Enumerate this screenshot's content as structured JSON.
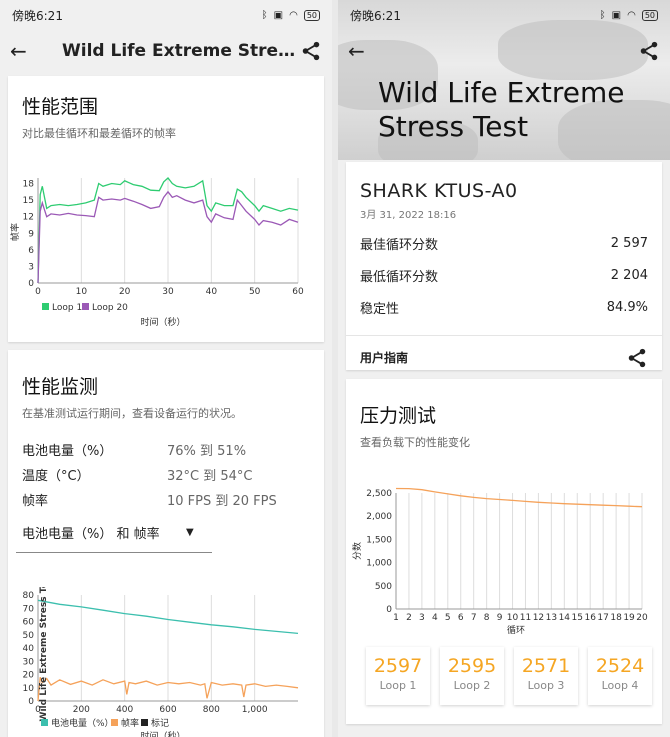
{
  "left": {
    "status": {
      "time": "傍晚6:21",
      "battery": "50"
    },
    "appbar": {
      "title": "Wild Life Extreme Stress Test"
    },
    "range_card": {
      "title": "性能范围",
      "subtitle": "对比最佳循环和最差循环的帧率",
      "ylabel": "帧率",
      "xlabel": "时间（秒）"
    },
    "monitor_card": {
      "title": "性能监测",
      "subtitle": "在基准测试运行期间，查看设备运行的状况。",
      "rows": [
        {
          "key": "电池电量（%）",
          "value": "76% 到 51%"
        },
        {
          "key": "温度（°C）",
          "value": "32°C 到 54°C"
        },
        {
          "key": "帧率",
          "value": "10 FPS 到 20 FPS"
        }
      ],
      "dropdown": "电池电量（%） 和 帧率",
      "overlay_label": "Wild Life Extreme Stress Test",
      "xlabel": "时间（秒）"
    }
  },
  "right": {
    "status": {
      "time": "傍晚6:21",
      "battery": "50"
    },
    "hero_title_line1": "Wild Life Extreme",
    "hero_title_line2": "Stress Test",
    "result_card": {
      "device": "SHARK KTUS-A0",
      "date": "3月 31, 2022 18:16",
      "rows": [
        {
          "key": "最佳循环分数",
          "value": "2 597"
        },
        {
          "key": "最低循环分数",
          "value": "2 204"
        },
        {
          "key": "稳定性",
          "value": "84.9%"
        }
      ],
      "guide": "用户指南"
    },
    "stress_card": {
      "title": "压力测试",
      "subtitle": "查看负载下的性能变化",
      "ylabel": "分数",
      "xlabel": "循环",
      "loops": [
        {
          "score": "2597",
          "label": "Loop 1"
        },
        {
          "score": "2595",
          "label": "Loop 2"
        },
        {
          "score": "2571",
          "label": "Loop 3"
        },
        {
          "score": "2524",
          "label": "Loop 4"
        }
      ]
    }
  },
  "colors": {
    "loop1": "#2ecc71",
    "loop20": "#9b59b6",
    "battery": "#3cbfae",
    "fps": "#f5a25a",
    "marker": "#222222",
    "stress": "#f5a25a",
    "score": "#f5a623"
  },
  "chart_data": [
    {
      "type": "line",
      "title": "性能范围",
      "xlabel": "时间（秒）",
      "ylabel": "帧率",
      "xlim": [
        0,
        60
      ],
      "ylim": [
        0,
        19
      ],
      "xticks": [
        0,
        10,
        20,
        30,
        40,
        50,
        60
      ],
      "yticks": [
        0,
        3,
        6,
        9,
        12,
        15,
        18
      ],
      "legend": "bottom-left",
      "series": [
        {
          "name": "Loop 1",
          "x": [
            0,
            0.5,
            1,
            2,
            3,
            5,
            7,
            9,
            11,
            13,
            14,
            15,
            17,
            19,
            20,
            22,
            24,
            26,
            28,
            29,
            30,
            31,
            32,
            34,
            36,
            38,
            39,
            40,
            41,
            43,
            45,
            46,
            47,
            48,
            50,
            51,
            52,
            54,
            56,
            58,
            60
          ],
          "y": [
            0,
            16,
            17.5,
            13.5,
            14,
            14.2,
            14,
            14.2,
            14.5,
            15,
            18,
            17.5,
            18,
            17.8,
            18.5,
            17.8,
            17.5,
            16.8,
            16.7,
            18.3,
            19,
            18,
            17.5,
            17.2,
            17.5,
            18.5,
            14,
            13,
            14.5,
            14,
            14,
            17,
            16.5,
            15.5,
            14,
            13,
            14,
            13.5,
            13,
            13.5,
            13.2
          ]
        },
        {
          "name": "Loop 20",
          "x": [
            0,
            0.5,
            1,
            2,
            3,
            5,
            7,
            9,
            11,
            13,
            14,
            15,
            17,
            19,
            20,
            22,
            24,
            26,
            28,
            29,
            30,
            31,
            32,
            34,
            36,
            38,
            39,
            40,
            41,
            43,
            45,
            46,
            47,
            48,
            50,
            51,
            52,
            54,
            56,
            58,
            60
          ],
          "y": [
            0,
            13,
            14.5,
            12,
            12.5,
            12.3,
            12.6,
            12.3,
            12.2,
            12,
            15.5,
            15,
            15.2,
            15,
            15.3,
            14.8,
            14.2,
            13.5,
            13.8,
            15.5,
            16.5,
            15.5,
            15.8,
            15,
            14.5,
            15,
            12,
            11,
            12.5,
            11.8,
            11.5,
            15,
            14,
            13,
            11.5,
            10.5,
            11.3,
            11,
            10.5,
            11.5,
            11
          ]
        }
      ]
    },
    {
      "type": "line",
      "xlabel": "时间（秒）",
      "xlim": [
        0,
        1200
      ],
      "ylim": [
        0,
        80
      ],
      "xticks": [
        0,
        200,
        400,
        600,
        800,
        1000
      ],
      "xtick_labels": [
        "0",
        "200",
        "400",
        "600",
        "800",
        "1,000"
      ],
      "yticks": [
        0,
        10,
        20,
        30,
        40,
        50,
        60,
        70,
        80
      ],
      "legend": "bottom-left",
      "series": [
        {
          "name": "电池电量（%）",
          "x": [
            0,
            100,
            200,
            300,
            400,
            500,
            600,
            700,
            800,
            900,
            1000,
            1100,
            1200
          ],
          "y": [
            76,
            73,
            71,
            68.5,
            66,
            64,
            61.5,
            59.5,
            57.5,
            56,
            54,
            52.5,
            51
          ]
        },
        {
          "name": "帧率",
          "x": [
            0,
            10,
            20,
            40,
            60,
            100,
            150,
            200,
            250,
            300,
            350,
            400,
            410,
            420,
            450,
            500,
            550,
            600,
            650,
            700,
            750,
            770,
            780,
            800,
            850,
            900,
            940,
            950,
            960,
            1000,
            1050,
            1100,
            1150,
            1200
          ],
          "y": [
            0,
            18,
            14,
            17,
            12,
            16,
            12.5,
            15,
            12,
            16,
            13,
            15,
            5,
            14,
            13,
            15,
            12,
            14,
            13,
            14,
            12,
            13,
            2,
            14,
            12,
            13,
            12,
            3,
            12,
            13,
            11,
            12,
            11,
            10
          ]
        },
        {
          "name": "标记",
          "x": [],
          "y": []
        }
      ]
    },
    {
      "type": "line",
      "xlabel": "循环",
      "ylabel": "分数",
      "xlim": [
        1,
        20
      ],
      "ylim": [
        0,
        2500
      ],
      "xticks": [
        1,
        2,
        3,
        4,
        5,
        6,
        7,
        8,
        9,
        10,
        11,
        12,
        13,
        14,
        15,
        16,
        17,
        18,
        19,
        20
      ],
      "yticks": [
        0,
        500,
        1000,
        1500,
        2000,
        2500
      ],
      "ytick_labels": [
        "0",
        "500",
        "1,000",
        "1,500",
        "2,000",
        "2,500"
      ],
      "series": [
        {
          "x": [
            1,
            2,
            3,
            4,
            5,
            6,
            7,
            8,
            9,
            10,
            11,
            12,
            13,
            14,
            15,
            16,
            17,
            18,
            19,
            20
          ],
          "y": [
            2597,
            2595,
            2571,
            2524,
            2480,
            2440,
            2405,
            2380,
            2360,
            2340,
            2320,
            2300,
            2285,
            2270,
            2258,
            2248,
            2238,
            2228,
            2216,
            2204
          ]
        }
      ]
    }
  ]
}
